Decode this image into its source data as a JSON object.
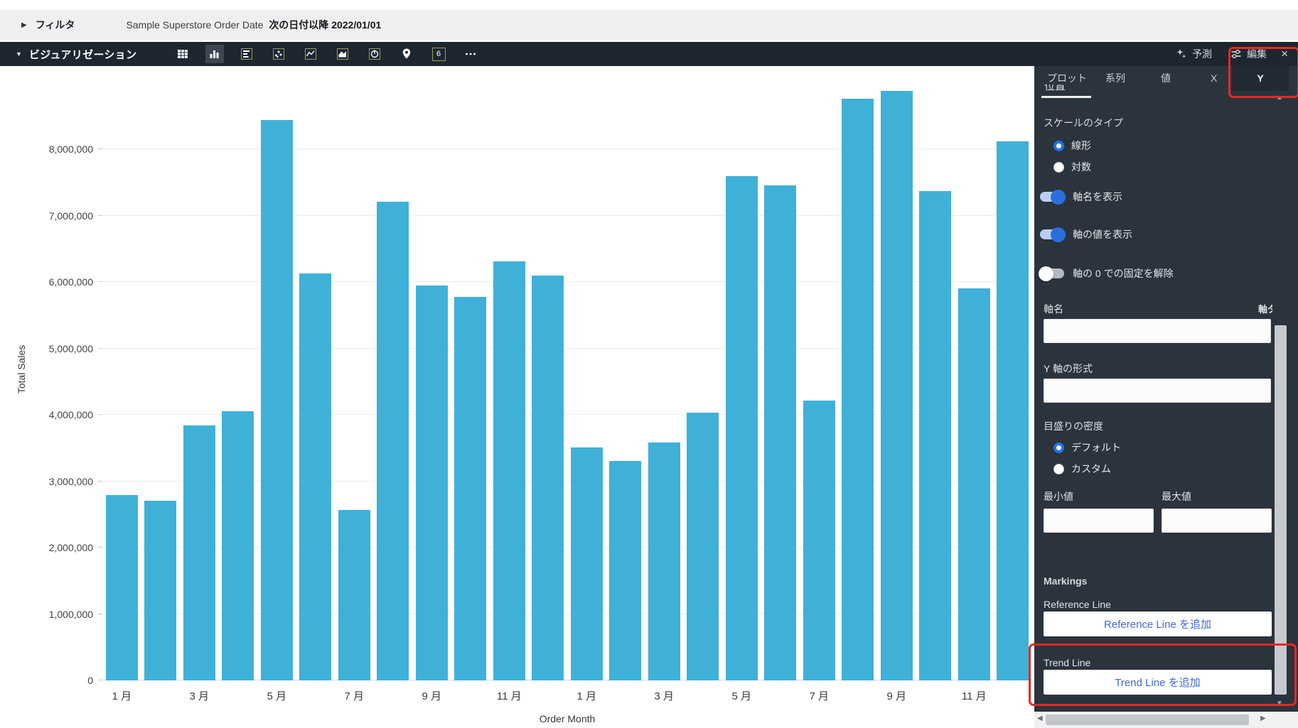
{
  "colors": {
    "bar": "#3fb1d8",
    "annotation_red": "#e8291f",
    "link_blue": "#4169d9",
    "toggle_on": "#2c6fdc",
    "panel_bg": "#2b333d",
    "toolbar_bg": "#1e2630"
  },
  "filter_bar": {
    "expand_label": "フィルタ",
    "filter_plain": "Sample Superstore Order Date",
    "filter_bold": "次の日付以降 2022/01/01"
  },
  "toolbar": {
    "title": "ビジュアリゼーション",
    "chart_type_icons": [
      {
        "name": "table-icon",
        "selected": false
      },
      {
        "name": "bar-chart-icon",
        "selected": true
      },
      {
        "name": "horizontal-bar-icon",
        "selected": false
      },
      {
        "name": "scatter-icon",
        "selected": false
      },
      {
        "name": "line-chart-icon",
        "selected": false
      },
      {
        "name": "area-chart-icon",
        "selected": false
      },
      {
        "name": "donut-chart-icon",
        "selected": false
      },
      {
        "name": "map-pin-icon",
        "selected": false
      },
      {
        "name": "box-six-icon",
        "selected": false,
        "label": "6"
      },
      {
        "name": "more-icon",
        "selected": false
      }
    ],
    "forecast_label": "予測",
    "edit_label": "編集",
    "close_label": "×"
  },
  "chart_data": {
    "type": "bar",
    "title": "",
    "xlabel": "Order Month",
    "ylabel": "Total Sales",
    "categories": [
      "1 月",
      "2 月",
      "3 月",
      "4 月",
      "5 月",
      "6 月",
      "7 月",
      "8 月",
      "9 月",
      "10 月",
      "11 月",
      "12 月",
      "1 月",
      "2 月",
      "3 月",
      "4 月",
      "5 月",
      "6 月",
      "7 月",
      "8 月",
      "9 月",
      "10 月",
      "11 月",
      "12 月"
    ],
    "values": [
      2790000,
      2710000,
      3840000,
      4050000,
      8440000,
      6130000,
      2570000,
      7210000,
      5950000,
      5780000,
      6310000,
      6100000,
      3510000,
      3310000,
      3580000,
      4030000,
      7590000,
      7460000,
      4210000,
      8760000,
      8880000,
      7370000,
      5900000,
      8120000
    ],
    "ylim": [
      0,
      9200000
    ],
    "yticks": [
      0,
      1000000,
      2000000,
      3000000,
      4000000,
      5000000,
      6000000,
      7000000,
      8000000
    ],
    "x_tick_label_every": 2,
    "grid": "horizontal",
    "legend": "none",
    "bar_color": "#3fb1d8"
  },
  "panel": {
    "tabs": [
      {
        "label": "プロット",
        "active": false
      },
      {
        "label": "系列",
        "active": false
      },
      {
        "label": "値",
        "active": false
      },
      {
        "label": "X",
        "active": false
      },
      {
        "label": "Y",
        "active": true
      }
    ],
    "scrolled_fragment": "位置",
    "scale_type": {
      "label": "スケールのタイプ",
      "options": [
        {
          "label": "線形",
          "selected": true
        },
        {
          "label": "対数",
          "selected": false
        }
      ]
    },
    "toggles": [
      {
        "label": "軸名を表示",
        "on": true
      },
      {
        "label": "軸の値を表示",
        "on": true
      },
      {
        "label": "軸の 0 での固定を解除",
        "on": false
      }
    ],
    "axis_name": {
      "label": "軸名",
      "value": "",
      "clipped_right_text": "軸タ"
    },
    "y_axis_format": {
      "label": "Y 軸の形式",
      "value": ""
    },
    "tick_density": {
      "label": "目盛りの密度",
      "options": [
        {
          "label": "デフォルト",
          "selected": true
        },
        {
          "label": "カスタム",
          "selected": false
        }
      ],
      "min_label": "最小値",
      "min_value": "",
      "max_label": "最大値",
      "max_value": ""
    },
    "markings": {
      "heading": "Markings",
      "reference_line_label": "Reference Line",
      "reference_line_button": "Reference Line を追加",
      "trend_line_label": "Trend Line",
      "trend_line_button": "Trend Line を追加"
    }
  }
}
